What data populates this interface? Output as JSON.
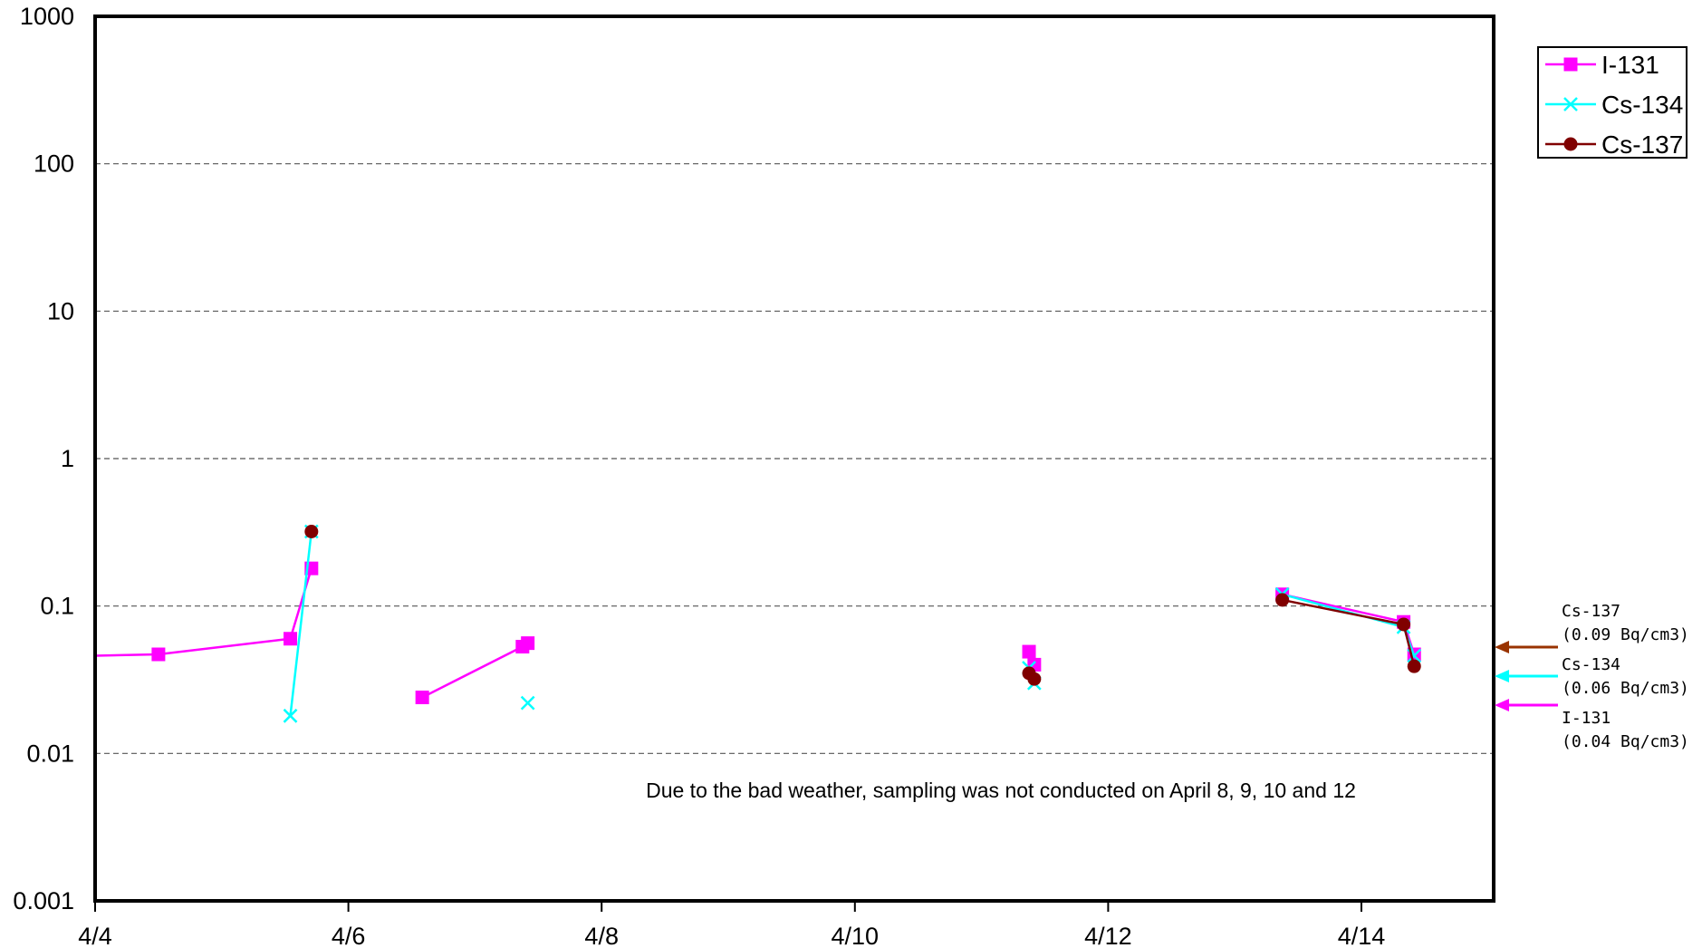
{
  "chart_data": {
    "type": "line",
    "title": "",
    "xlabel": "",
    "ylabel": "",
    "y_scale": "log",
    "ylim": [
      0.001,
      1000
    ],
    "y_ticks": [
      "1000",
      "100",
      "10",
      "1",
      "0.1",
      "0.01",
      "0.001"
    ],
    "xlim": [
      "4/4",
      "4/15"
    ],
    "x_ticks": [
      "4/4",
      "4/6",
      "4/8",
      "4/10",
      "4/12",
      "4/14"
    ],
    "grid": "horizontal dashed",
    "legend_position": "top-right",
    "series": [
      {
        "name": "I-131",
        "color": "#ff00ff",
        "marker": "square",
        "segments": [
          [
            [
              "4/4 00:00",
              0.046
            ],
            [
              "4/4 12:00",
              0.047
            ],
            [
              "4/5 13:00",
              0.06
            ],
            [
              "4/5 17:00",
              0.18
            ]
          ],
          [
            [
              "4/6 14:00",
              0.024
            ],
            [
              "4/7 09:00",
              0.053
            ],
            [
              "4/7 10:00",
              0.056
            ]
          ],
          [
            [
              "4/11 09:00",
              0.049
            ],
            [
              "4/11 10:00",
              0.04
            ]
          ],
          [
            [
              "4/13 09:00",
              0.12
            ],
            [
              "4/14 08:00",
              0.078
            ],
            [
              "4/14 10:00",
              0.047
            ]
          ]
        ]
      },
      {
        "name": "Cs-134",
        "color": "#00ffff",
        "marker": "x",
        "segments": [
          [
            [
              "4/5 13:00",
              0.018
            ],
            [
              "4/5 17:00",
              0.32
            ]
          ],
          [
            [
              "4/7 10:00",
              0.022
            ]
          ],
          [
            [
              "4/11 09:00",
              0.038
            ],
            [
              "4/11 10:00",
              0.03
            ]
          ],
          [
            [
              "4/13 09:00",
              0.12
            ],
            [
              "4/14 08:00",
              0.072
            ],
            [
              "4/14 10:00",
              0.046
            ]
          ]
        ]
      },
      {
        "name": "Cs-137",
        "color": "#800000",
        "marker": "circle",
        "segments": [
          [
            [
              "4/5 17:00",
              0.32
            ]
          ],
          [
            [
              "4/11 09:00",
              0.035
            ],
            [
              "4/11 10:00",
              0.032
            ]
          ],
          [
            [
              "4/13 09:00",
              0.11
            ],
            [
              "4/14 08:00",
              0.075
            ],
            [
              "4/14 10:00",
              0.039
            ]
          ]
        ]
      }
    ],
    "annotation": "Due to the bad weather, sampling was not conducted on April 8, 9, 10 and 12",
    "limit_markers": [
      {
        "name": "Cs-137",
        "value_label": "(0.09  Bq/cm3)",
        "color": "#993300"
      },
      {
        "name": "Cs-134",
        "value_label": "(0.06  Bq/cm3)",
        "color": "#00ffff"
      },
      {
        "name": "I-131",
        "value_label": "(0.04  Bq/cm3)",
        "color": "#ff00ff"
      }
    ]
  }
}
